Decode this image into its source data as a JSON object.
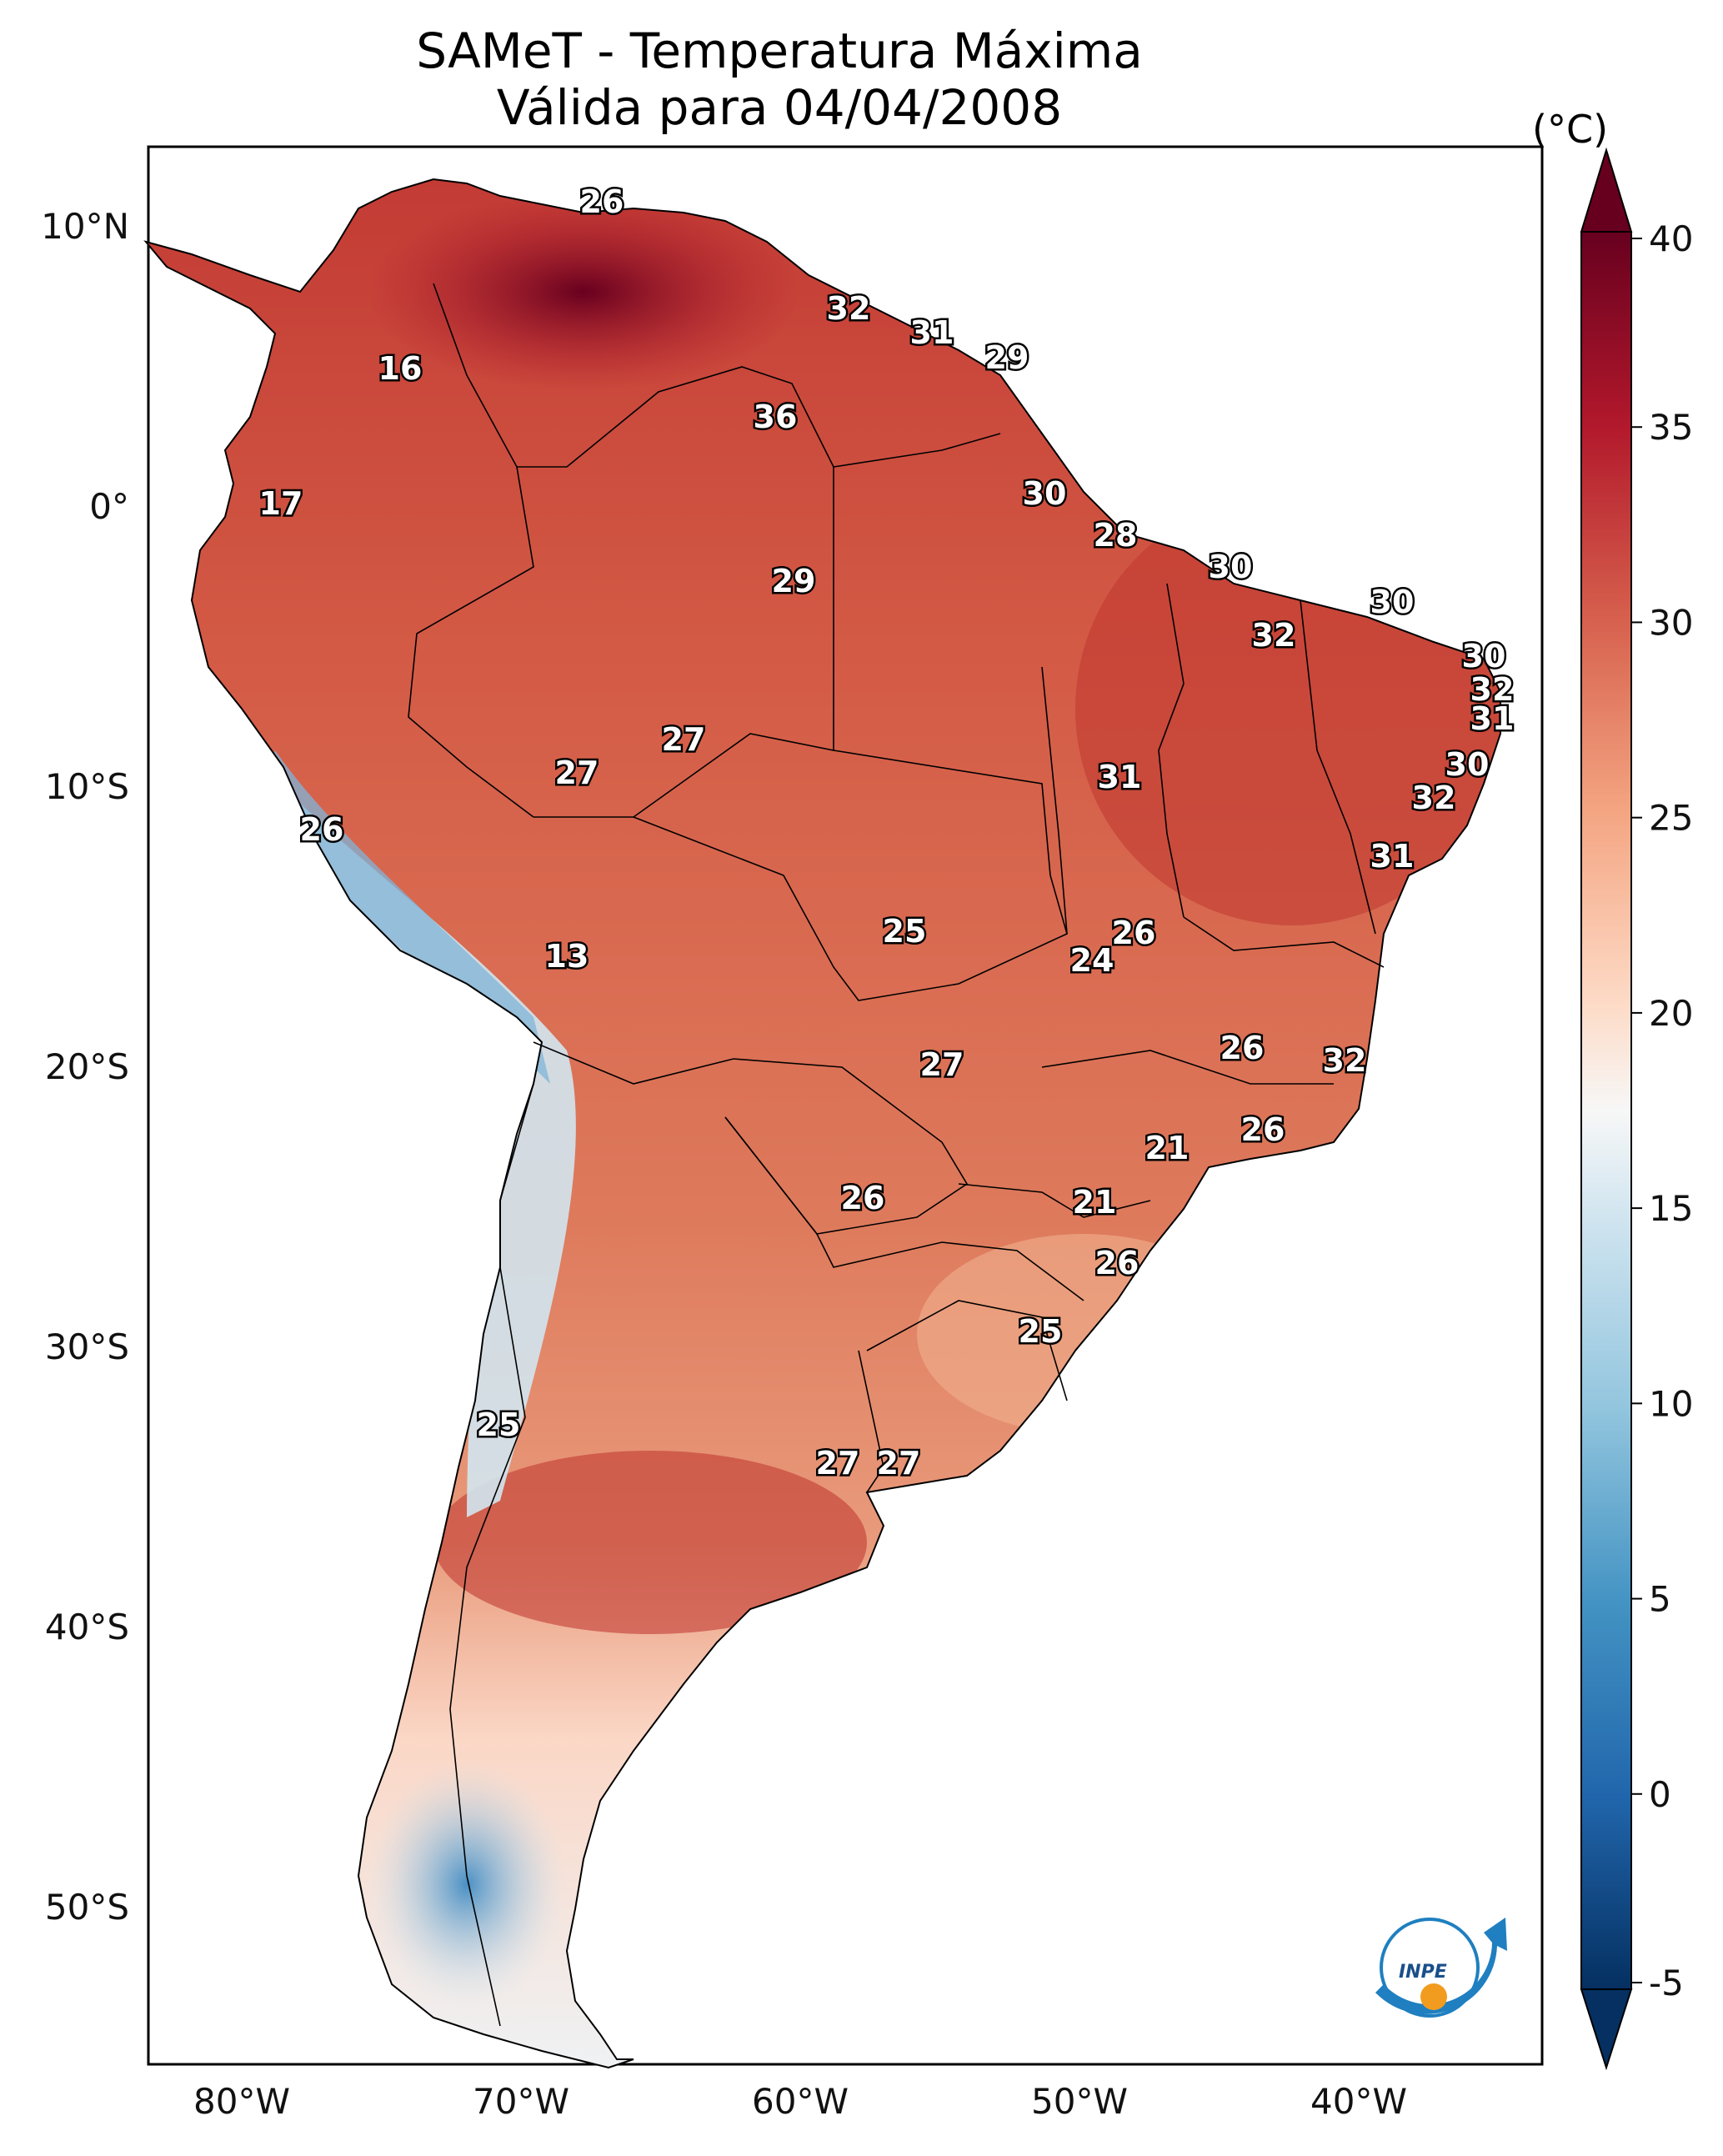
{
  "title": {
    "line1": "SAMeT - Temperatura Máxima",
    "line2": "Válida para 04/04/2008"
  },
  "colorbar": {
    "unit": "(°C)",
    "ticks": [
      "40",
      "35",
      "30",
      "25",
      "20",
      "15",
      "10",
      "5",
      "0",
      "-5"
    ],
    "range": [
      -5,
      40
    ],
    "colors": [
      "#67001f",
      "#b2182b",
      "#d6604d",
      "#f4a582",
      "#fddbc7",
      "#f7f7f7",
      "#d1e5f0",
      "#92c5de",
      "#4393c3",
      "#2166ac",
      "#053061"
    ]
  },
  "axes": {
    "lat_labels": [
      "10°N",
      "0°",
      "10°S",
      "20°S",
      "30°S",
      "40°S",
      "50°S"
    ],
    "lon_labels": [
      "80°W",
      "70°W",
      "60°W",
      "50°W",
      "40°W"
    ]
  },
  "stations": [
    {
      "label": "26"
    },
    {
      "label": "32"
    },
    {
      "label": "31"
    },
    {
      "label": "29"
    },
    {
      "label": "16"
    },
    {
      "label": "36"
    },
    {
      "label": "17"
    },
    {
      "label": "30"
    },
    {
      "label": "28"
    },
    {
      "label": "30"
    },
    {
      "label": "29"
    },
    {
      "label": "30"
    },
    {
      "label": "32"
    },
    {
      "label": "30"
    },
    {
      "label": "32"
    },
    {
      "label": "31"
    },
    {
      "label": "27"
    },
    {
      "label": "30"
    },
    {
      "label": "27"
    },
    {
      "label": "31"
    },
    {
      "label": "32"
    },
    {
      "label": "26"
    },
    {
      "label": "31"
    },
    {
      "label": "13"
    },
    {
      "label": "26"
    },
    {
      "label": "24"
    },
    {
      "label": "25"
    },
    {
      "label": "27"
    },
    {
      "label": "26"
    },
    {
      "label": "32"
    },
    {
      "label": "26"
    },
    {
      "label": "21"
    },
    {
      "label": "26"
    },
    {
      "label": "21"
    },
    {
      "label": "26"
    },
    {
      "label": "25"
    },
    {
      "label": "27"
    },
    {
      "label": "27"
    },
    {
      "label": "25"
    }
  ],
  "logo": {
    "text": "INPE"
  }
}
